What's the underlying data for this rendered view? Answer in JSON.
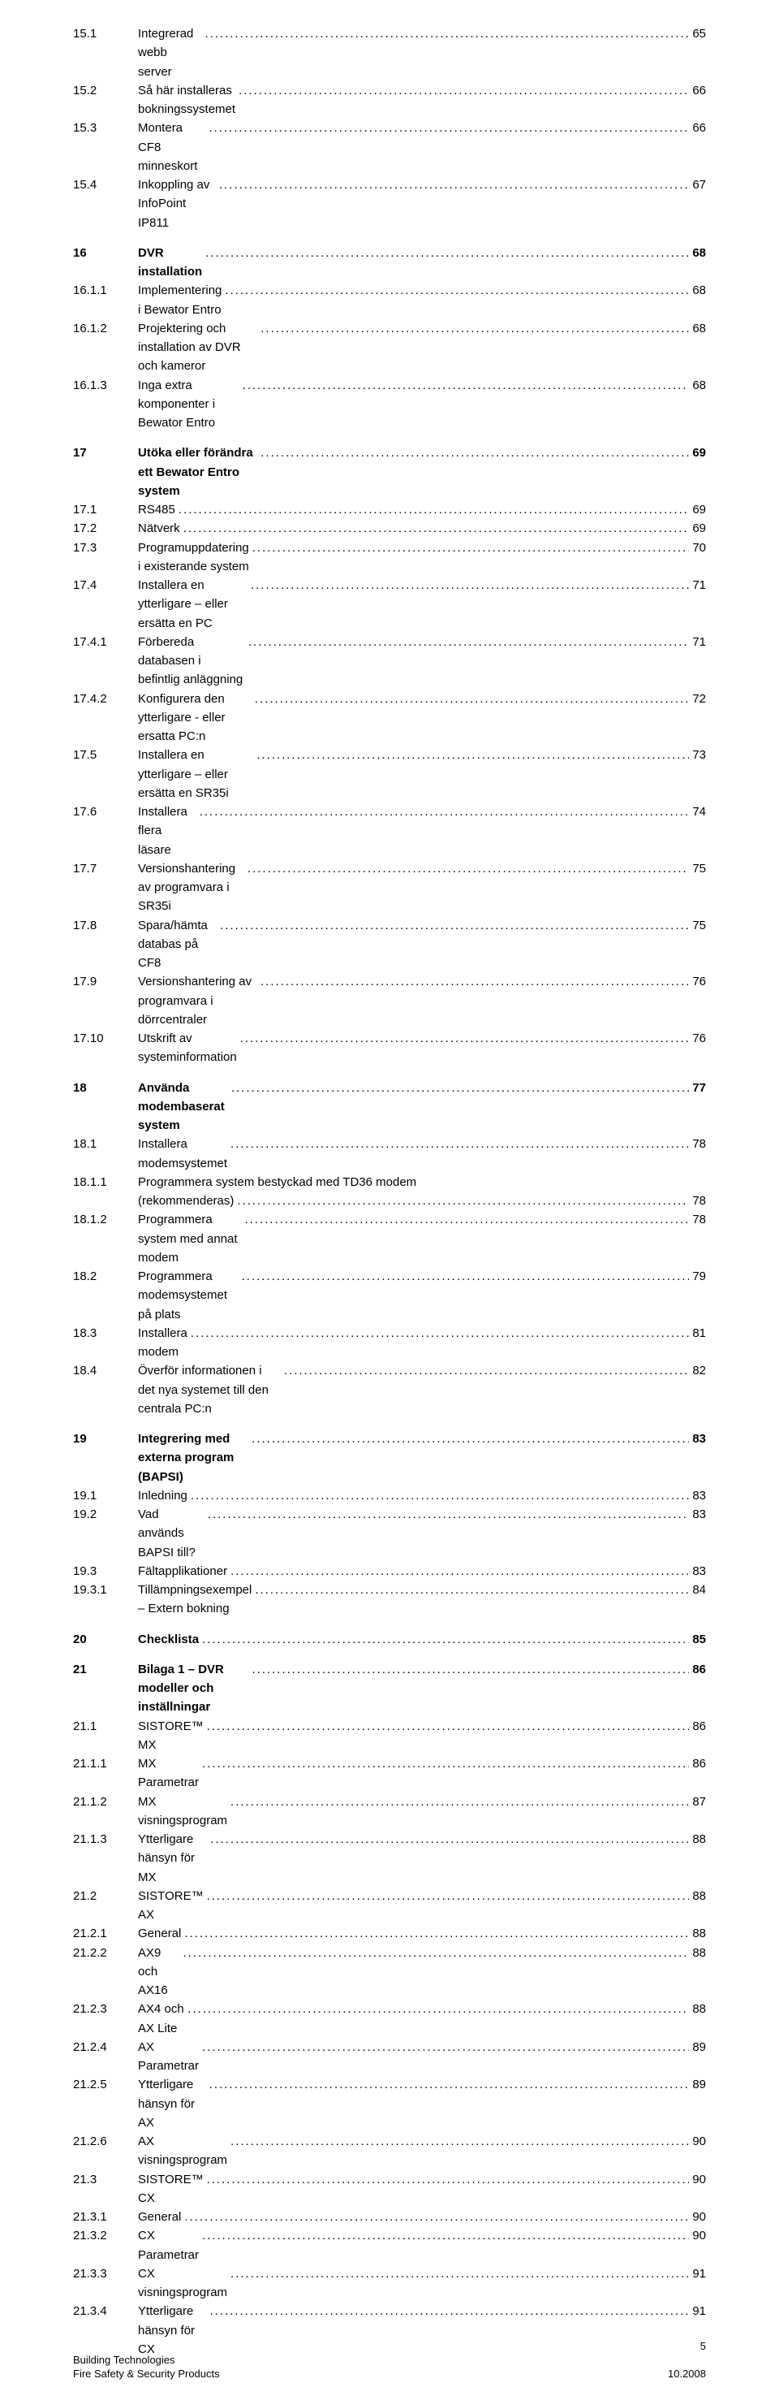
{
  "toc": [
    {
      "entries": [
        {
          "num": "15.1",
          "text": "Integrerad webb server",
          "page": "65",
          "bold": false
        },
        {
          "num": "15.2",
          "text": "Så här installeras bokningssystemet",
          "page": "66",
          "bold": false
        },
        {
          "num": "15.3",
          "text": "Montera CF8 minneskort",
          "page": "66",
          "bold": false
        },
        {
          "num": "15.4",
          "text": "Inkoppling av InfoPoint IP811",
          "page": "67",
          "bold": false
        }
      ]
    },
    {
      "entries": [
        {
          "num": "16",
          "text": "DVR installation",
          "page": "68",
          "bold": true
        },
        {
          "num": "16.1.1",
          "text": "Implementering i Bewator Entro",
          "page": "68",
          "bold": false
        },
        {
          "num": "16.1.2",
          "text": "Projektering och installation av DVR och kameror",
          "page": "68",
          "bold": false
        },
        {
          "num": "16.1.3",
          "text": "Inga extra komponenter i Bewator Entro",
          "page": "68",
          "bold": false
        }
      ]
    },
    {
      "entries": [
        {
          "num": "17",
          "text": "Utöka eller förändra ett Bewator Entro system",
          "page": "69",
          "bold": true
        },
        {
          "num": "17.1",
          "text": "RS485",
          "page": "69",
          "bold": false
        },
        {
          "num": "17.2",
          "text": "Nätverk",
          "page": "69",
          "bold": false
        },
        {
          "num": "17.3",
          "text": "Programuppdatering i existerande system",
          "page": "70",
          "bold": false
        },
        {
          "num": "17.4",
          "text": "Installera en ytterligare – eller ersätta en PC",
          "page": "71",
          "bold": false
        },
        {
          "num": "17.4.1",
          "text": "Förbereda databasen i befintlig anläggning",
          "page": "71",
          "bold": false
        },
        {
          "num": "17.4.2",
          "text": "Konfigurera den ytterligare - eller ersatta PC:n",
          "page": "72",
          "bold": false
        },
        {
          "num": "17.5",
          "text": "Installera en ytterligare – eller ersätta en SR35i",
          "page": "73",
          "bold": false
        },
        {
          "num": "17.6",
          "text": "Installera flera läsare",
          "page": "74",
          "bold": false
        },
        {
          "num": "17.7",
          "text": "Versionshantering av programvara i SR35i",
          "page": "75",
          "bold": false
        },
        {
          "num": "17.8",
          "text": "Spara/hämta databas på CF8",
          "page": "75",
          "bold": false
        },
        {
          "num": "17.9",
          "text": "Versionshantering av programvara i dörrcentraler",
          "page": "76",
          "bold": false
        },
        {
          "num": "17.10",
          "text": "Utskrift av systeminformation",
          "page": "76",
          "bold": false
        }
      ]
    },
    {
      "entries": [
        {
          "num": "18",
          "text": "Använda modembaserat system",
          "page": "77",
          "bold": true
        },
        {
          "num": "18.1",
          "text": "Installera modemsystemet",
          "page": "78",
          "bold": false
        },
        {
          "num": "18.1.1",
          "text": "Programmera system bestyckad med TD36 modem",
          "text2": "(rekommenderas)",
          "page": "78",
          "bold": false,
          "wrap": true
        },
        {
          "num": "18.1.2",
          "text": "Programmera system med annat modem",
          "page": "78",
          "bold": false
        },
        {
          "num": "18.2",
          "text": "Programmera modemsystemet på plats",
          "page": "79",
          "bold": false
        },
        {
          "num": "18.3",
          "text": "Installera modem",
          "page": "81",
          "bold": false
        },
        {
          "num": "18.4",
          "text": "Överför informationen i det nya systemet till den centrala PC:n",
          "page": "82",
          "bold": false
        }
      ]
    },
    {
      "entries": [
        {
          "num": "19",
          "text": "Integrering med externa program (BAPSI)",
          "page": "83",
          "bold": true
        },
        {
          "num": "19.1",
          "text": "Inledning",
          "page": "83",
          "bold": false
        },
        {
          "num": "19.2",
          "text": "Vad används BAPSI till?",
          "page": "83",
          "bold": false
        },
        {
          "num": "19.3",
          "text": "Fältapplikationer",
          "page": "83",
          "bold": false
        },
        {
          "num": "19.3.1",
          "text": "Tillämpningsexempel – Extern bokning",
          "page": "84",
          "bold": false
        }
      ]
    },
    {
      "entries": [
        {
          "num": "20",
          "text": "Checklista",
          "page": "85",
          "bold": true
        }
      ]
    },
    {
      "entries": [
        {
          "num": "21",
          "text": "Bilaga 1 – DVR modeller och inställningar",
          "page": "86",
          "bold": true
        },
        {
          "num": "21.1",
          "text": "SISTORE™ MX",
          "page": "86",
          "bold": false
        },
        {
          "num": "21.1.1",
          "text": "MX Parametrar",
          "page": "86",
          "bold": false
        },
        {
          "num": "21.1.2",
          "text": "MX visningsprogram",
          "page": "87",
          "bold": false
        },
        {
          "num": "21.1.3",
          "text": "Ytterligare hänsyn för MX",
          "page": "88",
          "bold": false
        },
        {
          "num": "21.2",
          "text": "SISTORE™ AX",
          "page": "88",
          "bold": false
        },
        {
          "num": "21.2.1",
          "text": "General",
          "page": "88",
          "bold": false
        },
        {
          "num": "21.2.2",
          "text": "AX9 och AX16",
          "page": "88",
          "bold": false
        },
        {
          "num": "21.2.3",
          "text": "AX4 och AX Lite",
          "page": "88",
          "bold": false
        },
        {
          "num": "21.2.4",
          "text": "AX Parametrar",
          "page": "89",
          "bold": false
        },
        {
          "num": "21.2.5",
          "text": "Ytterligare hänsyn för AX",
          "page": "89",
          "bold": false
        },
        {
          "num": "21.2.6",
          "text": "AX visningsprogram",
          "page": "90",
          "bold": false
        },
        {
          "num": "21.3",
          "text": "SISTORE™ CX",
          "page": "90",
          "bold": false
        },
        {
          "num": "21.3.1",
          "text": "General",
          "page": "90",
          "bold": false
        },
        {
          "num": "21.3.2",
          "text": "CX Parametrar",
          "page": "90",
          "bold": false
        },
        {
          "num": "21.3.3",
          "text": "CX visningsprogram",
          "page": "91",
          "bold": false
        },
        {
          "num": "21.3.4",
          "text": "Ytterligare hänsyn för CX",
          "page": "91",
          "bold": false
        }
      ]
    }
  ],
  "footer": {
    "page_number": "5",
    "line1": "Building Technologies",
    "line2_left": "Fire Safety & Security Products",
    "line2_right": "10.2008"
  }
}
